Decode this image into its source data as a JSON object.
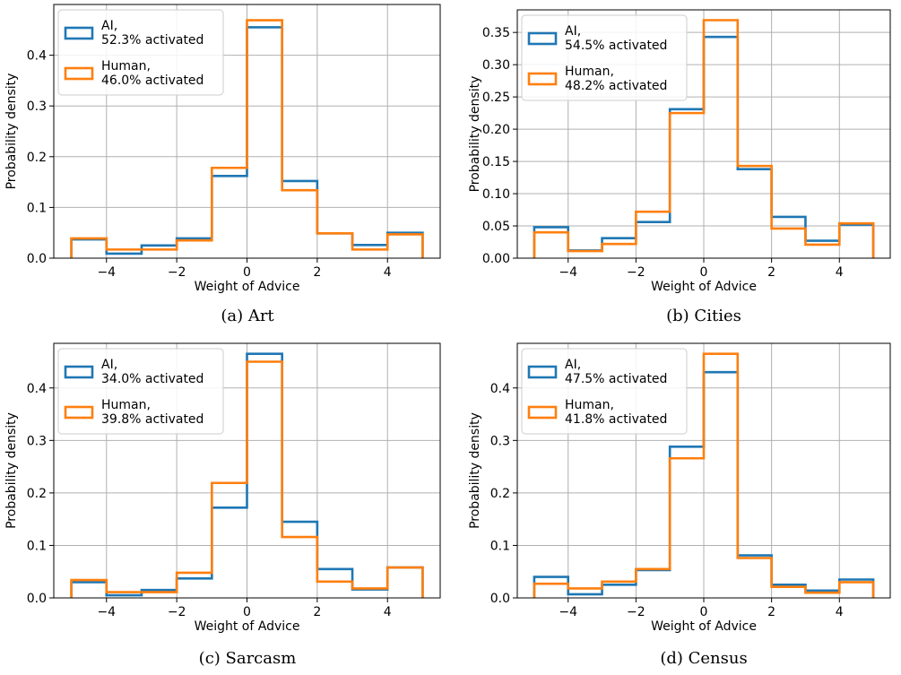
{
  "colors": {
    "ai": "#1f77b4",
    "human": "#ff7f0e",
    "grid": "#b0b0b0"
  },
  "chart_data": [
    {
      "type": "histogram-step",
      "caption": "(a) Art",
      "xlabel": "Weight of Advice",
      "ylabel": "Probability density",
      "bin_edges": [
        -5,
        -4,
        -3,
        -2,
        -1,
        0,
        1,
        2,
        3,
        4,
        5
      ],
      "xlim": [
        -5.5,
        5.5
      ],
      "xticks": [
        -4,
        -2,
        0,
        2,
        4
      ],
      "xtick_labels": [
        "−4",
        "−2",
        "0",
        "2",
        "4"
      ],
      "ylim": [
        0,
        0.5
      ],
      "yticks": [
        0,
        0.1,
        0.2,
        0.3,
        0.4
      ],
      "ytick_labels": [
        "0.0",
        "0.1",
        "0.2",
        "0.3",
        "0.4"
      ],
      "legend_position": "top-left",
      "grid": true,
      "series": [
        {
          "key": "ai",
          "name_line1": "AI,",
          "name_line2": "52.3% activated",
          "values": [
            0.037,
            0.009,
            0.025,
            0.039,
            0.162,
            0.455,
            0.152,
            0.049,
            0.026,
            0.05
          ]
        },
        {
          "key": "human",
          "name_line1": "Human,",
          "name_line2": "46.0% activated",
          "values": [
            0.039,
            0.017,
            0.017,
            0.035,
            0.178,
            0.469,
            0.134,
            0.049,
            0.017,
            0.047
          ]
        }
      ]
    },
    {
      "type": "histogram-step",
      "caption": "(b) Cities",
      "xlabel": "Weight of Advice",
      "ylabel": "Probability density",
      "bin_edges": [
        -5,
        -4,
        -3,
        -2,
        -1,
        0,
        1,
        2,
        3,
        4,
        5
      ],
      "xlim": [
        -5.5,
        5.5
      ],
      "xticks": [
        -4,
        -2,
        0,
        2,
        4
      ],
      "xtick_labels": [
        "−4",
        "−2",
        "0",
        "2",
        "4"
      ],
      "ylim": [
        0,
        0.385
      ],
      "yticks": [
        0,
        0.05,
        0.1,
        0.15,
        0.2,
        0.25,
        0.3,
        0.35
      ],
      "ytick_labels": [
        "0.00",
        "0.05",
        "0.10",
        "0.15",
        "0.20",
        "0.25",
        "0.30",
        "0.35"
      ],
      "legend_position": "top-left",
      "grid": true,
      "series": [
        {
          "key": "ai",
          "name_line1": "AI,",
          "name_line2": "54.5% activated",
          "values": [
            0.048,
            0.012,
            0.031,
            0.056,
            0.231,
            0.343,
            0.138,
            0.064,
            0.027,
            0.052
          ]
        },
        {
          "key": "human",
          "name_line1": "Human,",
          "name_line2": "48.2% activated",
          "values": [
            0.04,
            0.011,
            0.022,
            0.072,
            0.225,
            0.369,
            0.143,
            0.046,
            0.021,
            0.054
          ]
        }
      ]
    },
    {
      "type": "histogram-step",
      "caption": "(c) Sarcasm",
      "xlabel": "Weight of Advice",
      "ylabel": "Probability density",
      "bin_edges": [
        -5,
        -4,
        -3,
        -2,
        -1,
        0,
        1,
        2,
        3,
        4,
        5
      ],
      "xlim": [
        -5.5,
        5.5
      ],
      "xticks": [
        -4,
        -2,
        0,
        2,
        4
      ],
      "xtick_labels": [
        "−4",
        "−2",
        "0",
        "2",
        "4"
      ],
      "ylim": [
        0,
        0.485
      ],
      "yticks": [
        0,
        0.1,
        0.2,
        0.3,
        0.4
      ],
      "ytick_labels": [
        "0.0",
        "0.1",
        "0.2",
        "0.3",
        "0.4"
      ],
      "legend_position": "top-left",
      "grid": true,
      "series": [
        {
          "key": "ai",
          "name_line1": "AI,",
          "name_line2": "34.0% activated",
          "values": [
            0.03,
            0.005,
            0.015,
            0.037,
            0.172,
            0.465,
            0.145,
            0.055,
            0.016,
            0.058
          ]
        },
        {
          "key": "human",
          "name_line1": "Human,",
          "name_line2": "39.8% activated",
          "values": [
            0.034,
            0.011,
            0.011,
            0.048,
            0.219,
            0.45,
            0.116,
            0.031,
            0.018,
            0.058
          ]
        }
      ]
    },
    {
      "type": "histogram-step",
      "caption": "(d) Census",
      "xlabel": "Weight of Advice",
      "ylabel": "Probability density",
      "bin_edges": [
        -5,
        -4,
        -3,
        -2,
        -1,
        0,
        1,
        2,
        3,
        4,
        5
      ],
      "xlim": [
        -5.5,
        5.5
      ],
      "xticks": [
        -4,
        -2,
        0,
        2,
        4
      ],
      "xtick_labels": [
        "−4",
        "−2",
        "0",
        "2",
        "4"
      ],
      "ylim": [
        0,
        0.485
      ],
      "yticks": [
        0,
        0.1,
        0.2,
        0.3,
        0.4
      ],
      "ytick_labels": [
        "0.0",
        "0.1",
        "0.2",
        "0.3",
        "0.4"
      ],
      "legend_position": "top-left",
      "grid": true,
      "series": [
        {
          "key": "ai",
          "name_line1": "AI,",
          "name_line2": "47.5% activated",
          "values": [
            0.04,
            0.007,
            0.025,
            0.053,
            0.288,
            0.43,
            0.081,
            0.025,
            0.014,
            0.035
          ]
        },
        {
          "key": "human",
          "name_line1": "Human,",
          "name_line2": "41.8% activated",
          "values": [
            0.027,
            0.018,
            0.031,
            0.055,
            0.266,
            0.465,
            0.076,
            0.021,
            0.01,
            0.03
          ]
        }
      ]
    }
  ]
}
